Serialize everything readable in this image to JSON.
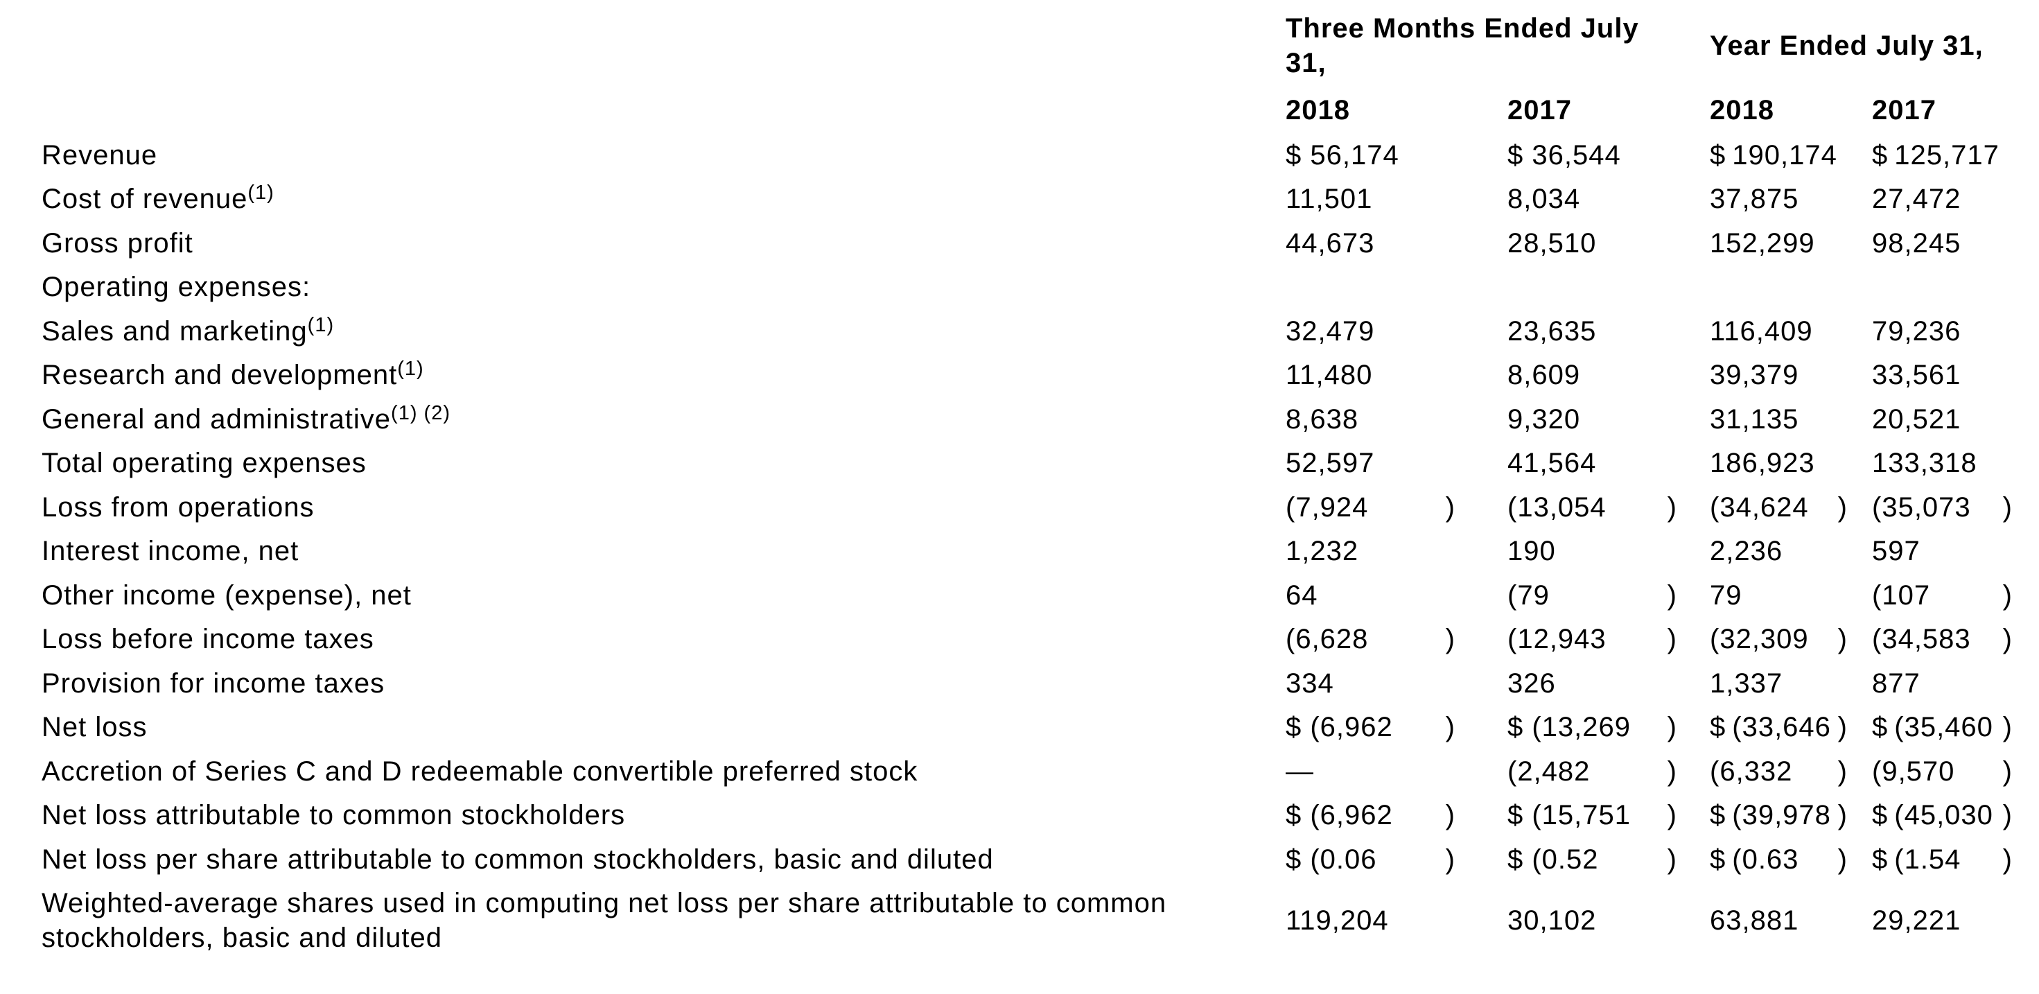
{
  "document": {
    "background": "#ffffff",
    "text_color": "#000000"
  },
  "table": {
    "paren": ")",
    "column_groups": [
      {
        "label": "Three Months Ended July 31,"
      },
      {
        "label": "Year Ended July 31,"
      }
    ],
    "period_headers": [
      "2018",
      "2017",
      "2018",
      "2017"
    ],
    "rows": [
      {
        "label": "Revenue",
        "sup": "",
        "values": [
          "$ 56,174",
          "$ 36,544",
          "$ 190,174",
          "$ 125,717"
        ],
        "close": [
          false,
          false,
          false,
          false
        ],
        "tall": false
      },
      {
        "label": "Cost of revenue",
        "sup": "(1)",
        "values": [
          "11,501",
          "8,034",
          "37,875",
          "27,472"
        ],
        "close": [
          false,
          false,
          false,
          false
        ],
        "tall": false
      },
      {
        "label": "Gross profit",
        "sup": "",
        "values": [
          "44,673",
          "28,510",
          "152,299",
          "98,245"
        ],
        "close": [
          false,
          false,
          false,
          false
        ],
        "tall": false
      },
      {
        "label": "Operating expenses:",
        "sup": "",
        "values": [
          "",
          "",
          "",
          ""
        ],
        "close": [
          false,
          false,
          false,
          false
        ],
        "tall": false
      },
      {
        "label": "Sales and marketing",
        "sup": "(1)",
        "values": [
          "32,479",
          "23,635",
          "116,409",
          "79,236"
        ],
        "close": [
          false,
          false,
          false,
          false
        ],
        "tall": false
      },
      {
        "label": "Research and development",
        "sup": "(1)",
        "values": [
          "11,480",
          "8,609",
          "39,379",
          "33,561"
        ],
        "close": [
          false,
          false,
          false,
          false
        ],
        "tall": false
      },
      {
        "label": "General and administrative",
        "sup": "(1) (2)",
        "values": [
          "8,638",
          "9,320",
          "31,135",
          "20,521"
        ],
        "close": [
          false,
          false,
          false,
          false
        ],
        "tall": false
      },
      {
        "label": "Total operating expenses",
        "sup": "",
        "values": [
          "52,597",
          "41,564",
          "186,923",
          "133,318"
        ],
        "close": [
          false,
          false,
          false,
          false
        ],
        "tall": false
      },
      {
        "label": "Loss from operations",
        "sup": "",
        "values": [
          "(7,924",
          "(13,054",
          "(34,624",
          "(35,073"
        ],
        "close": [
          true,
          true,
          true,
          true
        ],
        "tall": false
      },
      {
        "label": "Interest income, net",
        "sup": "",
        "values": [
          "1,232",
          "190",
          "2,236",
          "597"
        ],
        "close": [
          false,
          false,
          false,
          false
        ],
        "tall": false
      },
      {
        "label": "Other income (expense), net",
        "sup": "",
        "values": [
          "64",
          "(79",
          "79",
          "(107"
        ],
        "close": [
          false,
          true,
          false,
          true
        ],
        "tall": false
      },
      {
        "label": "Loss before income taxes",
        "sup": "",
        "values": [
          "(6,628",
          "(12,943",
          "(32,309",
          "(34,583"
        ],
        "close": [
          true,
          true,
          true,
          true
        ],
        "tall": false
      },
      {
        "label": "Provision for income taxes",
        "sup": "",
        "values": [
          "334",
          "326",
          "1,337",
          "877"
        ],
        "close": [
          false,
          false,
          false,
          false
        ],
        "tall": false
      },
      {
        "label": "Net loss",
        "sup": "",
        "values": [
          "$ (6,962",
          "$ (13,269",
          "$ (33,646",
          "$ (35,460"
        ],
        "close": [
          true,
          true,
          true,
          true
        ],
        "tall": false
      },
      {
        "label": "Accretion of Series C and D redeemable convertible preferred stock",
        "sup": "",
        "values": [
          "—",
          "(2,482",
          "(6,332",
          "(9,570"
        ],
        "close": [
          false,
          true,
          true,
          true
        ],
        "tall": false
      },
      {
        "label": "Net loss attributable to common stockholders",
        "sup": "",
        "values": [
          "$ (6,962",
          "$ (15,751",
          "$ (39,978",
          "$ (45,030"
        ],
        "close": [
          true,
          true,
          true,
          true
        ],
        "tall": false
      },
      {
        "label": "Net loss per share attributable to common stockholders, basic and diluted",
        "sup": "",
        "values": [
          "$ (0.06",
          "$ (0.52",
          "$ (0.63",
          "$ (1.54"
        ],
        "close": [
          true,
          true,
          true,
          true
        ],
        "tall": false
      },
      {
        "label": "Weighted-average shares used in computing net loss per share attributable to common stockholders, basic and diluted",
        "sup": "",
        "values": [
          "119,204",
          "30,102",
          "63,881",
          "29,221"
        ],
        "close": [
          false,
          false,
          false,
          false
        ],
        "tall": true
      }
    ]
  }
}
